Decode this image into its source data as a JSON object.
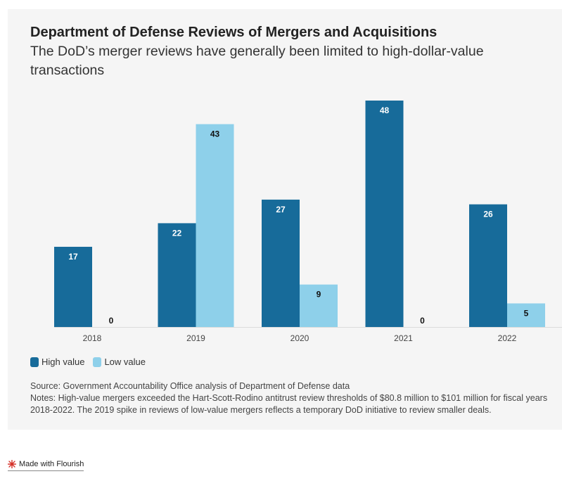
{
  "header": {
    "title": "Department of Defense Reviews of Mergers and Acquisitions",
    "subtitle": "The DoD’s merger reviews have generally been limited to high-dollar-value transactions"
  },
  "chart_data": {
    "type": "bar",
    "categories": [
      "2018",
      "2019",
      "2020",
      "2021",
      "2022"
    ],
    "series": [
      {
        "name": "High value",
        "color": "#176b9a",
        "values": [
          17,
          22,
          27,
          48,
          26
        ]
      },
      {
        "name": "Low value",
        "color": "#8ed0ea",
        "values": [
          0,
          43,
          9,
          0,
          5
        ]
      }
    ],
    "ylim": [
      0,
      48
    ],
    "grid": false,
    "legend_position": "bottom-left"
  },
  "legend": {
    "items": [
      {
        "label": "High value",
        "color": "#176b9a"
      },
      {
        "label": "Low value",
        "color": "#8ed0ea"
      }
    ]
  },
  "footer": {
    "source": "Source: Government Accountability Office analysis of Department of Defense data",
    "notes": "Notes: High-value mergers exceeded the Hart-Scott-Rodino antitrust review thresholds of $80.8 million to $101 million for fiscal years 2018-2022. The 2019 spike in reviews of low-value mergers reflects a temporary DoD initiative to review smaller deals."
  },
  "branding": {
    "label": "Made with Flourish"
  }
}
